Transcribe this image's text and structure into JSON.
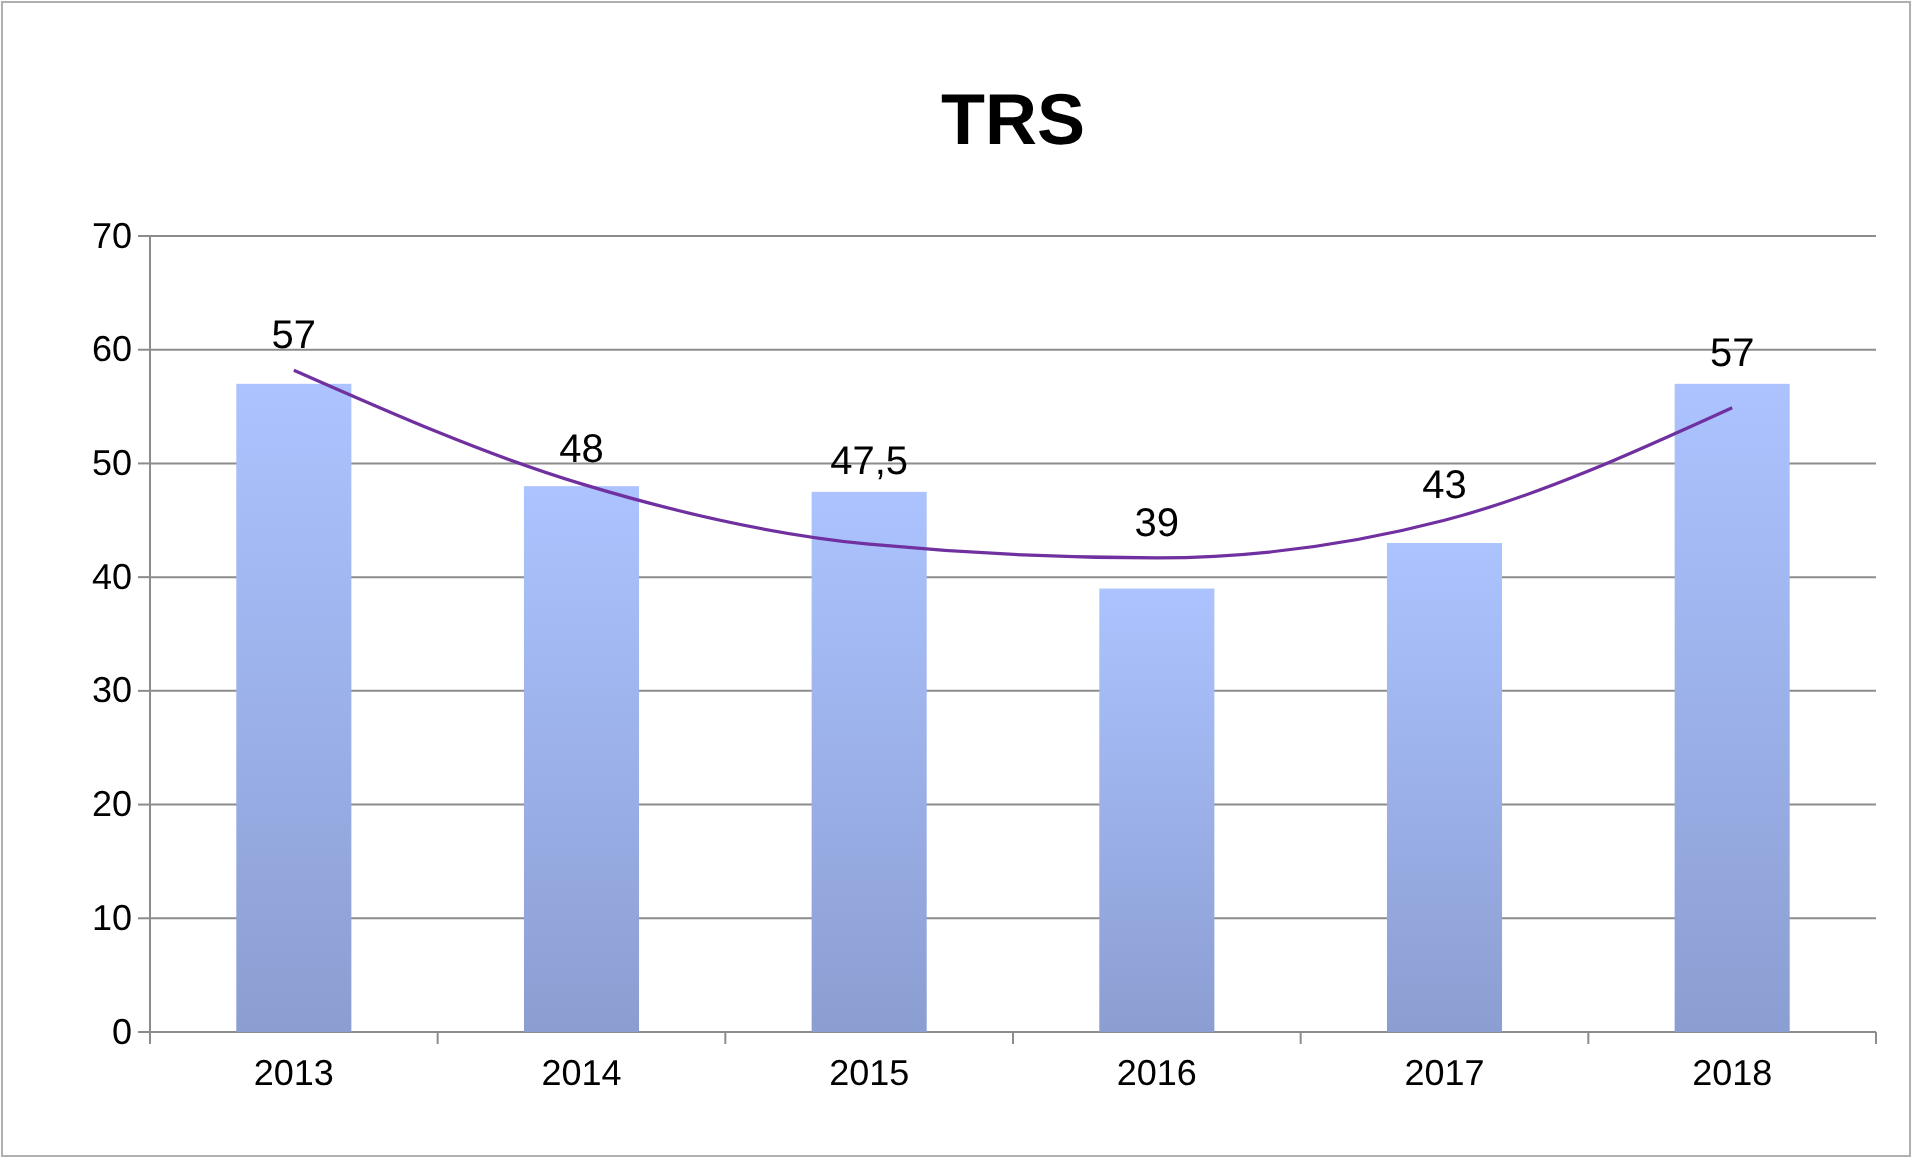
{
  "chart_data": {
    "type": "bar",
    "title": "TRS",
    "categories": [
      "2013",
      "2014",
      "2015",
      "2016",
      "2017",
      "2018"
    ],
    "series": [
      {
        "color": "#a3b9f7",
        "values": [
          57,
          48,
          47.5,
          39,
          43,
          57
        ],
        "value_labels": [
          "57",
          "48",
          "47,5",
          "39",
          "43",
          "57"
        ]
      },
      {
        "type": "line",
        "color": "#7030a0",
        "values": [
          58.2,
          48.2,
          42.9,
          41.7,
          45.0,
          54.9
        ]
      }
    ],
    "ylim": [
      0,
      70
    ],
    "yticks": [
      0,
      10,
      20,
      30,
      40,
      50,
      60,
      70
    ],
    "grid": "y"
  }
}
